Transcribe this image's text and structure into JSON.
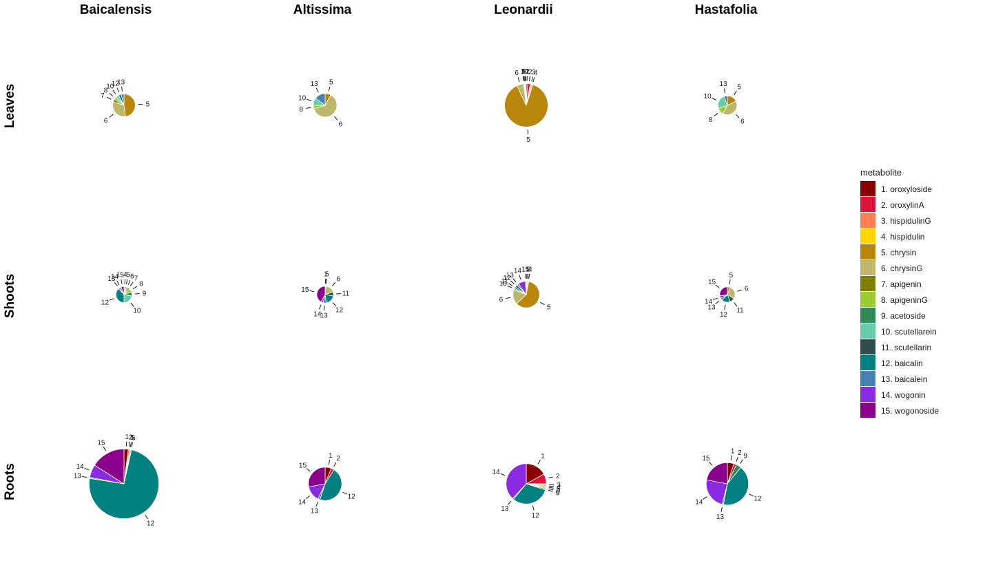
{
  "chart_data": {
    "type": "pie",
    "columns": [
      "Baicalensis",
      "Altissima",
      "Leonardii",
      "Hastafolia"
    ],
    "rows": [
      "Leaves",
      "Shoots",
      "Roots"
    ],
    "legend": {
      "title": "metabolite",
      "position": "right",
      "items": [
        {
          "id": 1,
          "label": "1. oroxyloside",
          "color": "#8B0000"
        },
        {
          "id": 2,
          "label": "2. oroxylinA",
          "color": "#DC143C"
        },
        {
          "id": 3,
          "label": "3. hispidulinG",
          "color": "#FF7F50"
        },
        {
          "id": 4,
          "label": "4. hispidulin",
          "color": "#FFD700"
        },
        {
          "id": 5,
          "label": "5. chrysin",
          "color": "#B8860B"
        },
        {
          "id": 6,
          "label": "6. chrysinG",
          "color": "#BDB76B"
        },
        {
          "id": 7,
          "label": "7. apigenin",
          "color": "#808000"
        },
        {
          "id": 8,
          "label": "8. apigeninG",
          "color": "#9ACD32"
        },
        {
          "id": 9,
          "label": "9. acetoside",
          "color": "#2E8B57"
        },
        {
          "id": 10,
          "label": "10. scutellarein",
          "color": "#66CDAA"
        },
        {
          "id": 11,
          "label": "11. scutellarin",
          "color": "#2F4F4F"
        },
        {
          "id": 12,
          "label": "12. baicalin",
          "color": "#008080"
        },
        {
          "id": 13,
          "label": "13. baicalein",
          "color": "#4682B4"
        },
        {
          "id": 14,
          "label": "14. wogonin",
          "color": "#8A2BE2"
        },
        {
          "id": 15,
          "label": "15. wogonoside",
          "color": "#8B008B"
        }
      ]
    },
    "panels": [
      {
        "column": "Baicalensis",
        "row": "Leaves",
        "total": 1.2,
        "slices": [
          {
            "id": 5,
            "value": 48
          },
          {
            "id": 6,
            "value": 32
          },
          {
            "id": 7,
            "value": 4
          },
          {
            "id": 8,
            "value": 4
          },
          {
            "id": 10,
            "value": 4
          },
          {
            "id": 12,
            "value": 4
          },
          {
            "id": 13,
            "value": 4
          }
        ]
      },
      {
        "column": "Altissima",
        "row": "Leaves",
        "total": 1.3,
        "slices": [
          {
            "id": 5,
            "value": 8
          },
          {
            "id": 6,
            "value": 62
          },
          {
            "id": 8,
            "value": 5
          },
          {
            "id": 10,
            "value": 10
          },
          {
            "id": 13,
            "value": 15
          }
        ]
      },
      {
        "column": "Leonardii",
        "row": "Leaves",
        "total": 4.4,
        "slices": [
          {
            "id": 1,
            "value": 1
          },
          {
            "id": 2,
            "value": 2
          },
          {
            "id": 3,
            "value": 1
          },
          {
            "id": 4,
            "value": 1
          },
          {
            "id": 5,
            "value": 88
          },
          {
            "id": 6,
            "value": 5
          },
          {
            "id": 7,
            "value": 0.5
          },
          {
            "id": 9,
            "value": 0.5
          },
          {
            "id": 10,
            "value": 0.5
          },
          {
            "id": 12,
            "value": 0.5
          }
        ]
      },
      {
        "column": "Hastafolia",
        "row": "Leaves",
        "total": 0.85,
        "slices": [
          {
            "id": 5,
            "value": 18
          },
          {
            "id": 6,
            "value": 40
          },
          {
            "id": 8,
            "value": 12
          },
          {
            "id": 10,
            "value": 24
          },
          {
            "id": 13,
            "value": 6
          }
        ]
      },
      {
        "column": "Baicalensis",
        "row": "Shoots",
        "total": 0.6,
        "slices": [
          {
            "id": 4,
            "value": 2
          },
          {
            "id": 5,
            "value": 3
          },
          {
            "id": 6,
            "value": 3
          },
          {
            "id": 7,
            "value": 4
          },
          {
            "id": 8,
            "value": 8
          },
          {
            "id": 9,
            "value": 8
          },
          {
            "id": 10,
            "value": 22
          },
          {
            "id": 12,
            "value": 38
          },
          {
            "id": 13,
            "value": 3
          },
          {
            "id": 14,
            "value": 3
          },
          {
            "id": 15,
            "value": 6
          }
        ]
      },
      {
        "column": "Altissima",
        "row": "Shoots",
        "total": 0.65,
        "slices": [
          {
            "id": 1,
            "value": 1
          },
          {
            "id": 5,
            "value": 1
          },
          {
            "id": 6,
            "value": 18
          },
          {
            "id": 11,
            "value": 8
          },
          {
            "id": 12,
            "value": 20
          },
          {
            "id": 13,
            "value": 6
          },
          {
            "id": 14,
            "value": 4
          },
          {
            "id": 15,
            "value": 42
          }
        ]
      },
      {
        "column": "Leonardii",
        "row": "Shoots",
        "total": 1.65,
        "slices": [
          {
            "id": 1,
            "value": 1
          },
          {
            "id": 2,
            "value": 1
          },
          {
            "id": 4,
            "value": 1
          },
          {
            "id": 5,
            "value": 60
          },
          {
            "id": 6,
            "value": 18
          },
          {
            "id": 10,
            "value": 2
          },
          {
            "id": 11,
            "value": 2
          },
          {
            "id": 12,
            "value": 3
          },
          {
            "id": 13,
            "value": 2
          },
          {
            "id": 14,
            "value": 9
          },
          {
            "id": 15,
            "value": 1
          }
        ]
      },
      {
        "column": "Hastafolia",
        "row": "Shoots",
        "total": 0.55,
        "slices": [
          {
            "id": 5,
            "value": 6
          },
          {
            "id": 6,
            "value": 28
          },
          {
            "id": 11,
            "value": 10
          },
          {
            "id": 12,
            "value": 18
          },
          {
            "id": 13,
            "value": 5
          },
          {
            "id": 14,
            "value": 5
          },
          {
            "id": 15,
            "value": 28
          }
        ]
      },
      {
        "column": "Baicalensis",
        "row": "Roots",
        "total": 11.4,
        "slices": [
          {
            "id": 1,
            "value": 2
          },
          {
            "id": 2,
            "value": 0.5
          },
          {
            "id": 5,
            "value": 0.5
          },
          {
            "id": 6,
            "value": 0.5
          },
          {
            "id": 12,
            "value": 74
          },
          {
            "id": 13,
            "value": 0.5
          },
          {
            "id": 14,
            "value": 6
          },
          {
            "id": 15,
            "value": 16
          }
        ]
      },
      {
        "column": "Altissima",
        "row": "Roots",
        "total": 2.6,
        "slices": [
          {
            "id": 1,
            "value": 6
          },
          {
            "id": 2,
            "value": 3
          },
          {
            "id": 12,
            "value": 46
          },
          {
            "id": 13,
            "value": 2
          },
          {
            "id": 14,
            "value": 15
          },
          {
            "id": 15,
            "value": 28
          }
        ]
      },
      {
        "column": "Leonardii",
        "row": "Roots",
        "total": 3.8,
        "slices": [
          {
            "id": 1,
            "value": 17
          },
          {
            "id": 2,
            "value": 8
          },
          {
            "id": 3,
            "value": 1
          },
          {
            "id": 4,
            "value": 1
          },
          {
            "id": 5,
            "value": 1
          },
          {
            "id": 6,
            "value": 1
          },
          {
            "id": 9,
            "value": 1
          },
          {
            "id": 12,
            "value": 31
          },
          {
            "id": 13,
            "value": 1
          },
          {
            "id": 14,
            "value": 38
          }
        ]
      },
      {
        "column": "Hastafolia",
        "row": "Roots",
        "total": 4.2,
        "slices": [
          {
            "id": 1,
            "value": 5
          },
          {
            "id": 2,
            "value": 2
          },
          {
            "id": 9,
            "value": 4
          },
          {
            "id": 12,
            "value": 42
          },
          {
            "id": 13,
            "value": 1
          },
          {
            "id": 14,
            "value": 24
          },
          {
            "id": 15,
            "value": 22
          }
        ]
      }
    ]
  }
}
